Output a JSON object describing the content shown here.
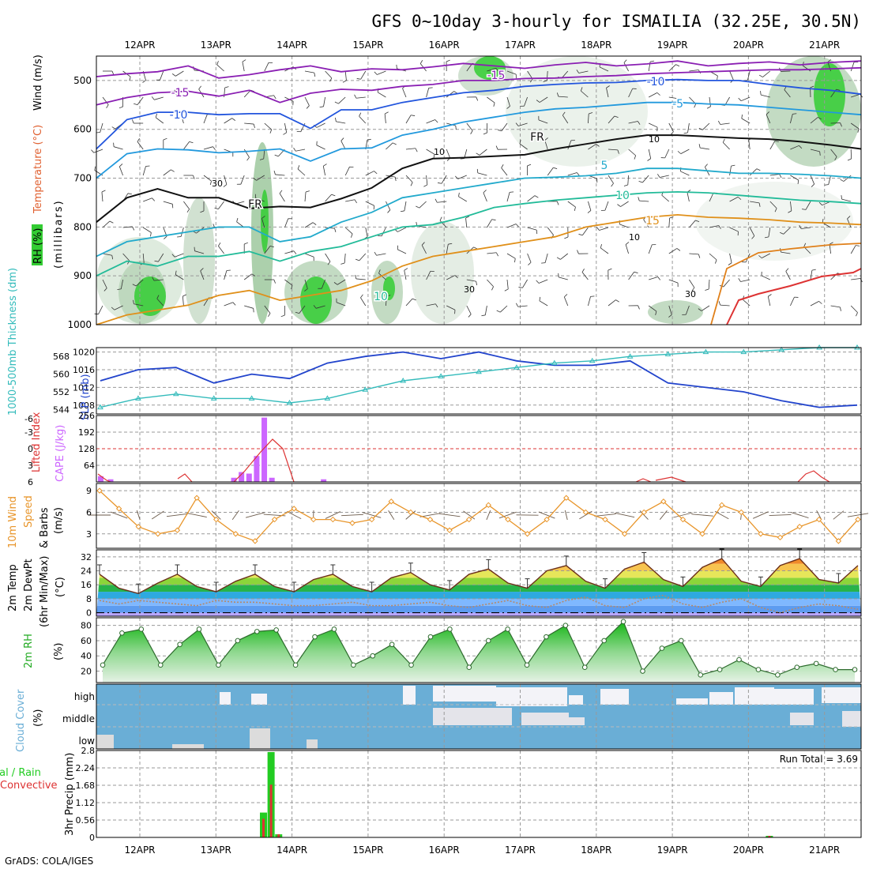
{
  "title": "GFS 0~10day 3-hourly for ISMAILIA (32.25E, 30.5N)",
  "footer": "GrADS: COLA/IGES",
  "date_labels": [
    "12APR",
    "13APR",
    "14APR",
    "15APR",
    "16APR",
    "17APR",
    "18APR",
    "19APR",
    "20APR",
    "21APR"
  ],
  "colors": {
    "cloud": "#6aaed6",
    "rh_green": "#2ecc2e",
    "cape": "#cc66ff",
    "lifted": "#dd3333",
    "slp": "#2244cc",
    "thick": "#33bbbb",
    "wind10": "#e8952a",
    "precip_total": "#22cc22",
    "precip_conv": "#dd3333"
  },
  "panels": {
    "upper": {
      "ylabel_wind": "Wind (m/s)",
      "ylabel_temp": "Temperature (°C)",
      "ylabel_rh": "RH (%)",
      "ylabel_mb": "(millibars)",
      "contour_labels": [
        "-15",
        "-15",
        "-10",
        "-10",
        "-5",
        "FR",
        "FR",
        "5",
        "10",
        "15",
        "10"
      ],
      "rh_labels": [
        "30",
        "10",
        "10",
        "10",
        "30",
        "30"
      ]
    },
    "slp": {
      "ylabel_thick": "1000-500mb Thickness (dm)",
      "ylabel_slp": "SLP (mb)"
    },
    "cape": {
      "ylabel_li": "Lifted Index",
      "ylabel_cape": "CAPE (J/kg)"
    },
    "wind10": {
      "ylabel_1": "10m Wind",
      "ylabel_2": "Speed",
      "ylabel_3": "& Barbs",
      "ylabel_4": "(m/s)"
    },
    "temp": {
      "ylabel_1": "2m Temp",
      "ylabel_2": "2m DewPt",
      "ylabel_3": "(6hr Min/Max)",
      "ylabel_4": "(°C)"
    },
    "rh": {
      "ylabel_1": "2m RH",
      "ylabel_2": "(%)"
    },
    "cloud": {
      "ylabel_1": "Cloud Cover",
      "ylabel_2": "(%)"
    },
    "precip": {
      "ylabel_1": "tal / Rain",
      "ylabel_2": "Convective",
      "ylabel_3": "3hr Precip (mm)",
      "run_total": "Run Total = 3.69"
    }
  },
  "chart_data": [
    {
      "type": "heatmap",
      "name": "upper_air",
      "ylim": [
        1000,
        450
      ],
      "yticks": [
        "500",
        "600",
        "700",
        "800",
        "900",
        "1000"
      ],
      "isotherms": [
        {
          "label": "-15",
          "values": [
            492,
            486,
            482,
            470,
            495,
            488,
            478,
            470,
            482,
            476,
            478,
            472,
            465,
            470,
            475,
            468,
            463,
            470,
            466,
            460,
            470,
            465,
            462,
            468,
            463,
            460
          ]
        },
        {
          "label": "-15",
          "values": [
            550,
            535,
            525,
            522,
            532,
            520,
            545,
            526,
            518,
            520,
            512,
            508,
            500,
            500,
            496,
            495,
            492,
            490,
            486,
            484,
            482,
            480,
            478,
            478,
            476,
            474
          ]
        },
        {
          "label": "-10",
          "values": [
            640,
            580,
            565,
            565,
            570,
            568,
            568,
            598,
            560,
            560,
            545,
            535,
            525,
            520,
            512,
            508,
            505,
            504,
            500,
            498,
            500,
            500,
            508,
            515,
            520,
            528
          ]
        },
        {
          "label": "-5",
          "values": [
            700,
            650,
            640,
            642,
            648,
            645,
            640,
            665,
            640,
            638,
            612,
            600,
            585,
            575,
            565,
            558,
            555,
            550,
            545,
            545,
            548,
            550,
            555,
            560,
            565,
            570
          ]
        },
        {
          "label": "FR",
          "values": [
            790,
            740,
            722,
            740,
            740,
            762,
            758,
            760,
            742,
            720,
            680,
            660,
            658,
            655,
            652,
            640,
            630,
            620,
            612,
            612,
            615,
            618,
            620,
            625,
            632,
            640
          ]
        },
        {
          "label": "5",
          "values": [
            860,
            830,
            820,
            810,
            800,
            800,
            830,
            820,
            790,
            770,
            740,
            730,
            720,
            710,
            700,
            698,
            695,
            690,
            680,
            680,
            685,
            690,
            690,
            692,
            695,
            700
          ]
        },
        {
          "label": "10",
          "values": [
            900,
            870,
            880,
            860,
            860,
            850,
            870,
            850,
            840,
            820,
            800,
            795,
            780,
            760,
            752,
            745,
            740,
            735,
            730,
            728,
            730,
            735,
            740,
            745,
            748,
            752
          ]
        },
        {
          "label": "15",
          "values": [
            1000,
            980,
            970,
            960,
            940,
            930,
            950,
            940,
            930,
            910,
            880,
            860,
            850,
            840,
            830,
            820,
            800,
            790,
            780,
            775,
            780,
            782,
            785,
            790,
            792,
            795
          ]
        }
      ]
    },
    {
      "type": "line",
      "name": "slp_thickness",
      "x_days": [
        0,
        0.5,
        1,
        1.5,
        2,
        2.5,
        3,
        3.5,
        4,
        4.5,
        5,
        5.5,
        6,
        6.5,
        7,
        7.5,
        8,
        8.5,
        9,
        9.5,
        10
      ],
      "series": [
        {
          "name": "SLP (mb)",
          "values": [
            1013.5,
            1016,
            1016.5,
            1013,
            1015,
            1014,
            1017.5,
            1019,
            1020,
            1018.5,
            1020,
            1018,
            1017,
            1017,
            1018,
            1013,
            1012,
            1011,
            1009,
            1007.5,
            1008
          ]
        },
        {
          "name": "1000-500mb Thickness (dm)",
          "values": [
            545,
            549,
            551,
            549,
            549,
            547,
            549,
            553,
            557,
            559,
            561,
            563,
            565,
            566,
            568,
            569,
            570,
            570,
            571,
            572,
            572
          ]
        }
      ],
      "ylim_slp": [
        1006,
        1021
      ],
      "ylim_thick": [
        542,
        572
      ],
      "yticks_slp": [
        "1008",
        "1012",
        "1016",
        "1020"
      ],
      "yticks_thick": [
        "544",
        "552",
        "560",
        "568"
      ]
    },
    {
      "type": "bar",
      "name": "cape_lifted",
      "cape_values": [
        {
          "day": 0.0,
          "value": 22
        },
        {
          "day": 0.13,
          "value": 10
        },
        {
          "day": 1.75,
          "value": 16
        },
        {
          "day": 1.85,
          "value": 38
        },
        {
          "day": 1.95,
          "value": 32
        },
        {
          "day": 2.05,
          "value": 100
        },
        {
          "day": 2.15,
          "value": 248
        },
        {
          "day": 2.25,
          "value": 16
        },
        {
          "day": 2.93,
          "value": 10
        }
      ],
      "lifted_index": [
        3,
        5,
        4.5,
        5,
        5,
        3,
        1,
        -1,
        3,
        6,
        6,
        6,
        6,
        6,
        6,
        6,
        5,
        4,
        6,
        5,
        6,
        6,
        6,
        3,
        6
      ],
      "ylim_cape": [
        0,
        256
      ],
      "yticks_cape": [
        "64",
        "128",
        "192",
        "256"
      ],
      "yticks_li": [
        "6",
        "3",
        "0",
        "-3",
        "-6"
      ]
    },
    {
      "type": "line",
      "name": "wind10",
      "x_days": [
        0,
        0.25,
        0.5,
        0.75,
        1,
        1.25,
        1.5,
        1.75,
        2,
        2.25,
        2.5,
        2.75,
        3,
        3.25,
        3.5,
        3.75,
        4,
        4.25,
        4.5,
        4.75,
        5,
        5.25,
        5.5,
        5.75,
        6,
        6.25,
        6.5,
        6.75,
        7,
        7.25,
        7.5,
        7.75,
        8,
        8.25,
        8.5,
        8.75,
        9,
        9.25,
        9.5,
        9.75
      ],
      "values": [
        9,
        6.5,
        4,
        3,
        3.5,
        8,
        5,
        3,
        2,
        5,
        6.5,
        5,
        5,
        4.5,
        5,
        7.5,
        6,
        5,
        3.5,
        5,
        7,
        5,
        3,
        5,
        8,
        6,
        5,
        3,
        6,
        7.5,
        5,
        3,
        7,
        6,
        3,
        2.5,
        4,
        5,
        2,
        5
      ],
      "ylim": [
        1,
        10
      ],
      "yticks": [
        "3",
        "6",
        "9"
      ]
    },
    {
      "type": "area",
      "name": "temp_dewpt",
      "x_days": [
        0,
        0.25,
        0.5,
        0.75,
        1,
        1.25,
        1.5,
        1.75,
        2,
        2.25,
        2.5,
        2.75,
        3,
        3.25,
        3.5,
        3.75,
        4,
        4.25,
        4.5,
        4.75,
        5,
        5.25,
        5.5,
        5.75,
        6,
        6.25,
        6.5,
        6.75,
        7,
        7.25,
        7.5,
        7.75,
        8,
        8.25,
        8.5,
        8.75,
        9,
        9.25,
        9.5,
        9.75
      ],
      "temp": [
        22,
        14,
        11,
        17,
        22,
        15,
        12,
        18,
        22,
        15,
        12,
        19,
        22,
        15,
        12,
        20,
        23,
        16,
        13,
        22,
        25,
        17,
        14,
        24,
        27,
        18,
        14,
        25,
        29,
        19,
        15,
        26,
        31,
        18,
        15,
        27,
        31,
        19,
        17,
        27
      ],
      "dewpt": [
        7,
        5,
        7,
        6,
        5,
        4,
        7,
        6,
        6,
        5,
        4,
        4,
        5,
        6,
        4,
        4,
        5,
        6,
        4,
        3,
        5,
        7,
        4,
        3,
        7,
        9,
        4,
        3,
        8,
        10,
        5,
        3,
        6,
        8,
        3,
        0,
        3,
        5,
        4,
        2
      ],
      "ylim": [
        -2,
        36
      ],
      "yticks": [
        "0",
        "8",
        "16",
        "24",
        "32"
      ]
    },
    {
      "type": "area",
      "name": "rh2m",
      "x_days": [
        0,
        0.25,
        0.5,
        0.75,
        1,
        1.25,
        1.5,
        1.75,
        2,
        2.25,
        2.5,
        2.75,
        3,
        3.25,
        3.5,
        3.75,
        4,
        4.25,
        4.5,
        4.75,
        5,
        5.25,
        5.5,
        5.75,
        6,
        6.25,
        6.5,
        6.75,
        7,
        7.25,
        7.5,
        7.75,
        8,
        8.25,
        8.5,
        8.75,
        9,
        9.25,
        9.5,
        9.75
      ],
      "values": [
        28,
        70,
        75,
        28,
        55,
        75,
        28,
        60,
        72,
        74,
        28,
        65,
        75,
        28,
        40,
        55,
        28,
        65,
        75,
        25,
        60,
        75,
        28,
        65,
        80,
        25,
        60,
        85,
        20,
        50,
        60,
        15,
        22,
        35,
        22,
        15,
        25,
        30,
        22,
        22
      ],
      "ylim": [
        5,
        90
      ],
      "yticks": [
        "20",
        "40",
        "60",
        "80"
      ]
    },
    {
      "type": "heatmap",
      "name": "cloud_cover",
      "levels": [
        "high",
        "middle",
        "low"
      ]
    },
    {
      "type": "bar",
      "name": "precip",
      "total": [
        {
          "day": 2.0,
          "value": 0.8
        },
        {
          "day": 2.1,
          "value": 2.75
        },
        {
          "day": 2.2,
          "value": 0.1
        },
        {
          "day": 8.65,
          "value": 0.05
        }
      ],
      "convective": [
        {
          "day": 2.0,
          "value": 0.6
        },
        {
          "day": 2.1,
          "value": 1.7
        },
        {
          "day": 2.2,
          "value": 0.1
        },
        {
          "day": 8.65,
          "value": 0.05
        }
      ],
      "ylim": [
        0,
        2.8
      ],
      "yticks": [
        "0",
        "0.56",
        "1.12",
        "1.68",
        "2.24",
        "2.8"
      ]
    }
  ]
}
